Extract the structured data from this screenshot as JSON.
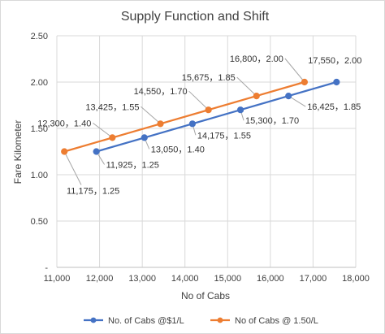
{
  "chart_data": {
    "type": "line",
    "title": "Supply Function and Shift",
    "xlabel": "No of Cabs",
    "ylabel": "Fare Kilometer",
    "xlim": [
      11000,
      18000
    ],
    "ylim": [
      0,
      2.5
    ],
    "x_ticks": [
      "11,000",
      "12,000",
      "13,000",
      "14,000",
      "15,000",
      "16,000",
      "17,000",
      "18,000"
    ],
    "y_ticks": [
      "-",
      "0.50",
      "1.00",
      "1.50",
      "2.00",
      "2.50"
    ],
    "y_tick_values": [
      0,
      0.5,
      1.0,
      1.5,
      2.0,
      2.5
    ],
    "x_tick_values": [
      11000,
      12000,
      13000,
      14000,
      15000,
      16000,
      17000,
      18000
    ],
    "grid": true,
    "legend_position": "bottom",
    "series": [
      {
        "name": "No. of Cabs @$1/L",
        "color": "#4472C4",
        "points": [
          {
            "x": 11925,
            "y": 1.25,
            "label": "11,925，1.25"
          },
          {
            "x": 13050,
            "y": 1.4,
            "label": "13,050，1.40"
          },
          {
            "x": 14175,
            "y": 1.55,
            "label": "14,175，1.55"
          },
          {
            "x": 15300,
            "y": 1.7,
            "label": "15,300，1.70"
          },
          {
            "x": 16425,
            "y": 1.85,
            "label": "16,425，1.85"
          },
          {
            "x": 17550,
            "y": 2.0,
            "label": "17,550，2.00"
          }
        ]
      },
      {
        "name": "No of Cabs @ 1.50/L",
        "color": "#ED7D31",
        "points": [
          {
            "x": 11175,
            "y": 1.25,
            "label": "11,175，1.25"
          },
          {
            "x": 12300,
            "y": 1.4,
            "label": "12,300，1.40"
          },
          {
            "x": 13425,
            "y": 1.55,
            "label": "13,425，1.55"
          },
          {
            "x": 14550,
            "y": 1.7,
            "label": "14,550，1.70"
          },
          {
            "x": 15675,
            "y": 1.85,
            "label": "15,675，1.85"
          },
          {
            "x": 16800,
            "y": 2.0,
            "label": "16,800，2.00"
          }
        ]
      }
    ]
  }
}
